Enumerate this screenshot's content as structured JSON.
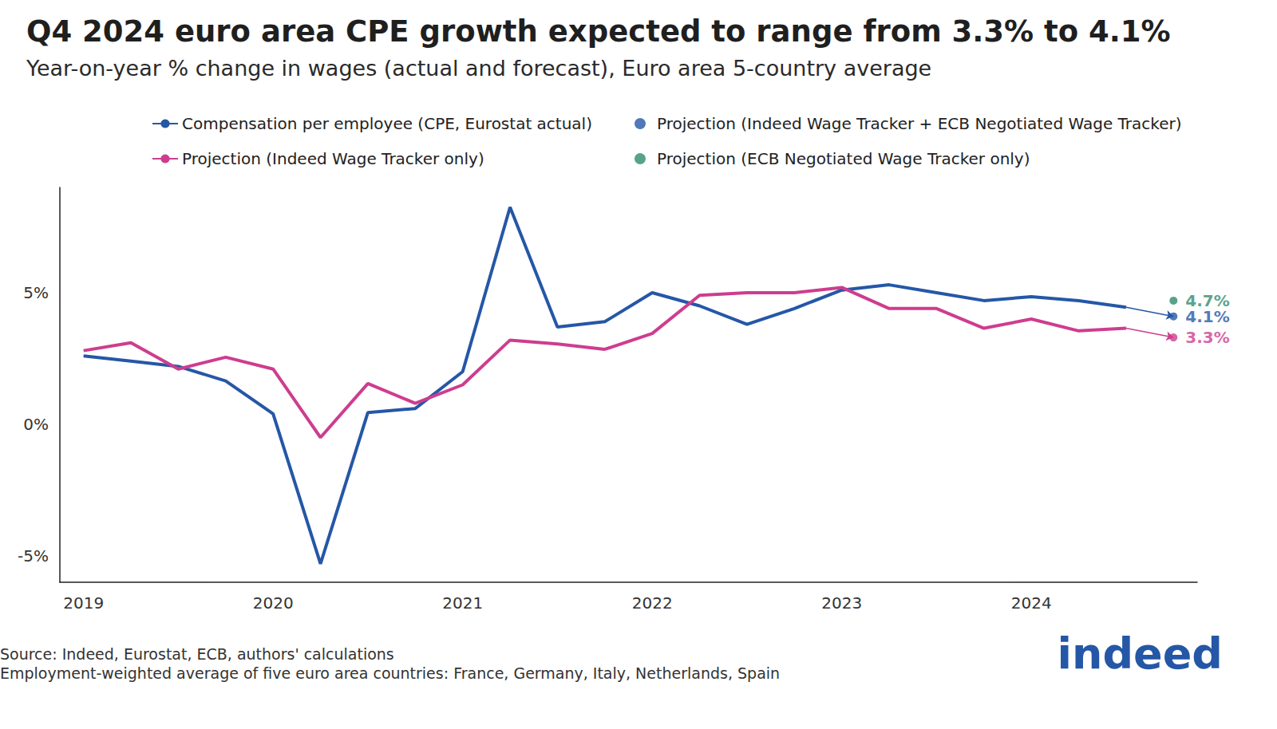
{
  "chart_data": {
    "type": "line",
    "title": "Q4 2024 euro area CPE growth expected to range from 3.3% to 4.1%",
    "subtitle": "Year-on-year % change in wages (actual and forecast), Euro area 5-country average",
    "notes": [
      "Source: Indeed, Eurostat, ECB, authors' calculations",
      "Employment-weighted average of five euro area countries: France, Germany, Italy, Netherlands, Spain"
    ],
    "logo": "indeed",
    "categories": [
      "2019",
      null,
      null,
      null,
      "2020",
      null,
      null,
      null,
      "2021",
      null,
      null,
      null,
      "2022",
      null,
      null,
      null,
      "2023",
      null,
      null,
      null,
      "2024",
      null,
      null,
      null
    ],
    "series": [
      {
        "name": "Compensation per employee (CPE, Eurostat actual)",
        "type": "line",
        "color": "#2557a7",
        "values": [
          2.6,
          2.4,
          2.2,
          1.65,
          0.4,
          -5.3,
          0.45,
          0.6,
          2.0,
          8.25,
          3.7,
          3.9,
          5.0,
          4.5,
          3.8,
          4.4,
          5.1,
          5.3,
          5.0,
          4.7,
          4.85,
          4.7,
          4.45,
          null
        ]
      },
      {
        "name": "Projection (Indeed Wage Tracker + ECB Negotiated Wage Tracker)",
        "type": "scatter",
        "color": "#2557a7",
        "marker": "circle",
        "values": [
          null,
          null,
          null,
          null,
          null,
          null,
          null,
          null,
          null,
          null,
          null,
          null,
          null,
          null,
          null,
          null,
          null,
          null,
          null,
          null,
          null,
          null,
          null,
          4.1
        ],
        "value_labels": [
          null,
          null,
          null,
          null,
          null,
          null,
          null,
          null,
          null,
          null,
          null,
          null,
          null,
          null,
          null,
          null,
          null,
          null,
          null,
          null,
          null,
          null,
          null,
          "4.1%"
        ]
      },
      {
        "name": "Projection (Indeed Wage Tracker only)",
        "type": "line",
        "color": "#cd3d8f",
        "marker": "circle",
        "values": [
          2.8,
          3.1,
          2.1,
          2.55,
          2.1,
          -0.5,
          1.55,
          0.8,
          1.5,
          3.2,
          3.05,
          2.85,
          3.45,
          4.9,
          5.0,
          5.0,
          5.2,
          4.4,
          4.4,
          3.65,
          4.0,
          3.55,
          3.65,
          3.3
        ],
        "value_labels": [
          null,
          null,
          null,
          null,
          null,
          null,
          null,
          null,
          null,
          null,
          null,
          null,
          null,
          null,
          null,
          null,
          null,
          null,
          null,
          null,
          null,
          null,
          null,
          "3.3%"
        ]
      },
      {
        "name": "Projection (ECB Negotiated Wage Tracker only)",
        "type": "scatter",
        "color": "#2e8b6f",
        "marker": "circle",
        "values": [
          null,
          null,
          null,
          null,
          null,
          null,
          null,
          null,
          null,
          null,
          null,
          null,
          null,
          null,
          null,
          null,
          null,
          null,
          null,
          null,
          null,
          null,
          null,
          4.7
        ],
        "value_labels": [
          null,
          null,
          null,
          null,
          null,
          null,
          null,
          null,
          null,
          null,
          null,
          null,
          null,
          null,
          null,
          null,
          null,
          null,
          null,
          null,
          null,
          null,
          null,
          "4.7%"
        ]
      }
    ],
    "ylim": [
      -6,
      9
    ],
    "yticks": [
      {
        "value": -5,
        "label": "-5%"
      },
      {
        "value": 0,
        "label": "0%"
      },
      {
        "value": 5,
        "label": "5%"
      }
    ],
    "grid": false,
    "legend": "top",
    "data_labels": true
  }
}
